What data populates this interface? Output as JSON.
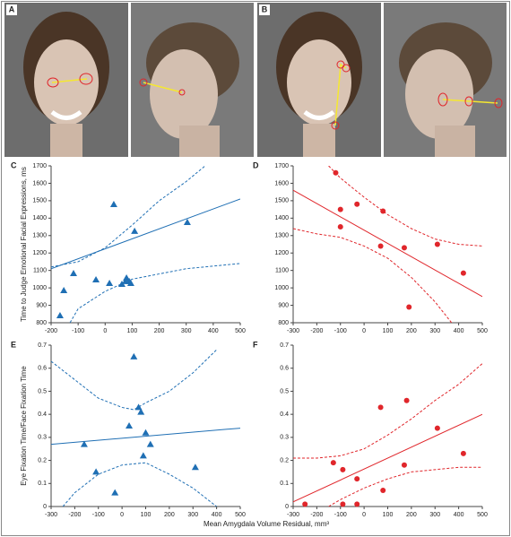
{
  "photo_panels": [
    {
      "label": "A"
    },
    {
      "label": "B"
    }
  ],
  "x_label": "Mean Amygdala Volume Residual, mm³",
  "chart_data": [
    {
      "type": "scatter",
      "title": "C",
      "y_label": "Time to Judge Emotional Facial Expressions, ms",
      "marker": "triangle",
      "color": "#1f6fb4",
      "xlim": [
        -200,
        500
      ],
      "xticks": [
        -200,
        -100,
        0,
        100,
        200,
        300,
        400,
        500
      ],
      "ylim": [
        800,
        1700
      ],
      "yticks": [
        800,
        900,
        1000,
        1100,
        1200,
        1300,
        1400,
        1500,
        1600,
        1700
      ],
      "points": {
        "x": [
          -167,
          -153,
          -117,
          -34,
          16,
          32,
          62,
          75,
          79,
          89,
          95,
          109,
          304
        ],
        "y": [
          841,
          985,
          1083,
          1047,
          1026,
          1479,
          1021,
          1037,
          1057,
          1037,
          1026,
          1325,
          1376
        ]
      },
      "fit": {
        "x": [
          -200,
          500
        ],
        "y": [
          1110,
          1510
        ]
      },
      "band_upper": {
        "x": [
          -200,
          -100,
          0,
          100,
          200,
          300,
          370
        ],
        "y": [
          1120,
          1150,
          1230,
          1360,
          1500,
          1610,
          1700
        ]
      },
      "band_lower": {
        "x": [
          -130,
          -100,
          0,
          100,
          200,
          300,
          500
        ],
        "y": [
          800,
          880,
          980,
          1050,
          1080,
          1110,
          1140
        ]
      }
    },
    {
      "type": "scatter",
      "title": "D",
      "marker": "circle",
      "color": "#e0262b",
      "xlim": [
        -300,
        500
      ],
      "xticks": [
        -300,
        -200,
        -100,
        0,
        100,
        200,
        300,
        400,
        500
      ],
      "ylim": [
        800,
        1700
      ],
      "yticks": [
        800,
        900,
        1000,
        1100,
        1200,
        1300,
        1400,
        1500,
        1600,
        1700
      ],
      "points": {
        "x": [
          -120,
          -100,
          -100,
          -30,
          70,
          80,
          170,
          190,
          310,
          420
        ],
        "y": [
          1660,
          1450,
          1350,
          1480,
          1240,
          1440,
          1230,
          890,
          1250,
          1085
        ]
      },
      "fit": {
        "x": [
          -300,
          500
        ],
        "y": [
          1560,
          950
        ]
      },
      "band_upper": {
        "x": [
          -150,
          -100,
          0,
          100,
          200,
          300,
          400,
          500
        ],
        "y": [
          1700,
          1630,
          1520,
          1420,
          1340,
          1280,
          1250,
          1240
        ]
      },
      "band_lower": {
        "x": [
          -300,
          -200,
          -100,
          0,
          100,
          200,
          300,
          370
        ],
        "y": [
          1340,
          1310,
          1290,
          1240,
          1170,
          1060,
          920,
          800
        ]
      }
    },
    {
      "type": "scatter",
      "title": "E",
      "y_label": "Eye Fixation Time/Face Fixation Time",
      "marker": "triangle",
      "color": "#1f6fb4",
      "xlim": [
        -300,
        500
      ],
      "xticks": [
        -300,
        -200,
        -100,
        0,
        100,
        200,
        300,
        400,
        500
      ],
      "ylim": [
        0,
        0.7
      ],
      "yticks": [
        0,
        0.1,
        0.2,
        0.3,
        0.4,
        0.5,
        0.6,
        0.7
      ],
      "points": {
        "x": [
          -160,
          -110,
          -30,
          30,
          50,
          70,
          80,
          90,
          100,
          120,
          310
        ],
        "y": [
          0.27,
          0.15,
          0.06,
          0.35,
          0.65,
          0.43,
          0.41,
          0.22,
          0.32,
          0.27,
          0.17
        ]
      },
      "fit": {
        "x": [
          -300,
          500
        ],
        "y": [
          0.27,
          0.34
        ]
      },
      "band_upper": {
        "x": [
          -300,
          -200,
          -100,
          0,
          50,
          100,
          200,
          300,
          400
        ],
        "y": [
          0.63,
          0.55,
          0.47,
          0.43,
          0.42,
          0.45,
          0.5,
          0.58,
          0.68
        ]
      },
      "band_lower": {
        "x": [
          -250,
          -200,
          -100,
          0,
          100,
          200,
          300,
          400
        ],
        "y": [
          0,
          0.06,
          0.14,
          0.18,
          0.19,
          0.14,
          0.08,
          0
        ]
      }
    },
    {
      "type": "scatter",
      "title": "F",
      "marker": "circle",
      "color": "#e0262b",
      "xlim": [
        -300,
        500
      ],
      "xticks": [
        -300,
        -200,
        -100,
        0,
        100,
        200,
        300,
        400,
        500
      ],
      "ylim": [
        0,
        0.7
      ],
      "yticks": [
        0,
        0.1,
        0.2,
        0.3,
        0.4,
        0.5,
        0.6,
        0.7
      ],
      "points": {
        "x": [
          -250,
          -130,
          -90,
          -90,
          -30,
          -30,
          70,
          80,
          170,
          180,
          310,
          420
        ],
        "y": [
          0.01,
          0.19,
          0.16,
          0.01,
          0.12,
          0.01,
          0.43,
          0.07,
          0.18,
          0.46,
          0.34,
          0.23
        ]
      },
      "fit": {
        "x": [
          -300,
          500
        ],
        "y": [
          0.02,
          0.4
        ]
      },
      "band_upper": {
        "x": [
          -300,
          -200,
          -100,
          0,
          100,
          200,
          300,
          400,
          500
        ],
        "y": [
          0.21,
          0.21,
          0.22,
          0.25,
          0.31,
          0.38,
          0.46,
          0.53,
          0.62
        ]
      },
      "band_lower": {
        "x": [
          -150,
          -100,
          0,
          100,
          200,
          300,
          400,
          500
        ],
        "y": [
          0,
          0.03,
          0.08,
          0.12,
          0.15,
          0.16,
          0.17,
          0.17
        ]
      }
    }
  ]
}
